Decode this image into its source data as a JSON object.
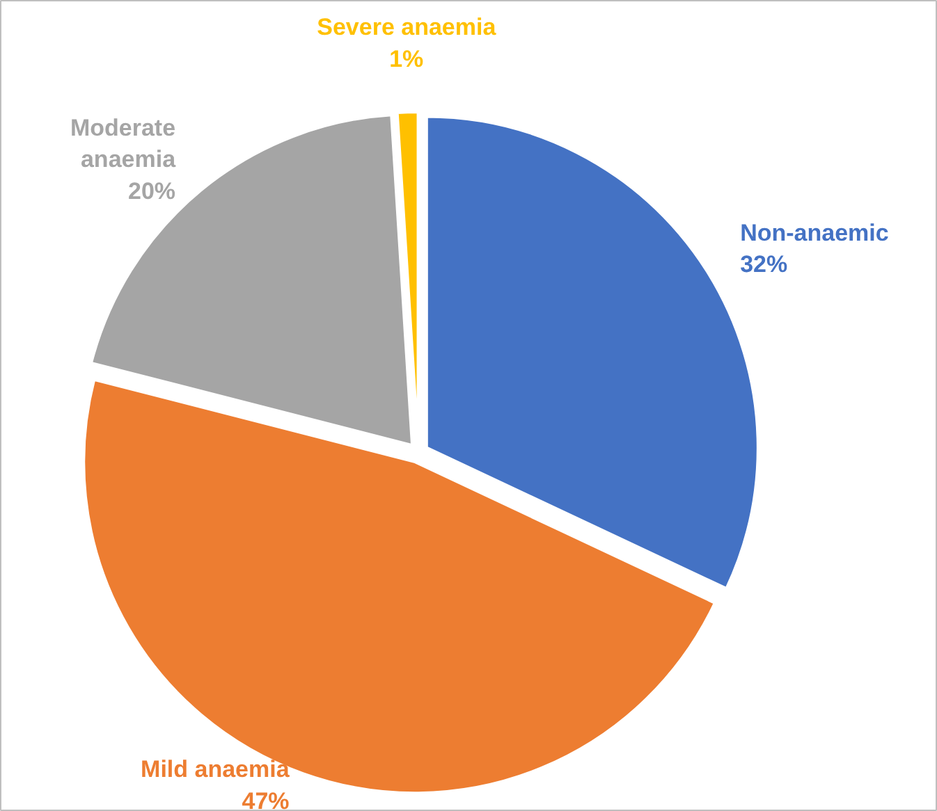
{
  "chart_data": {
    "type": "pie",
    "categories": [
      "Non-anaemic",
      "Mild anaemia",
      "Moderate anaemia",
      "Severe anaemia"
    ],
    "values": [
      32,
      47,
      20,
      1
    ],
    "colors": [
      "#4472c4",
      "#ed7d31",
      "#a5a5a5",
      "#ffc000"
    ],
    "value_labels": [
      "32%",
      "47%",
      "20%",
      "1%"
    ]
  }
}
